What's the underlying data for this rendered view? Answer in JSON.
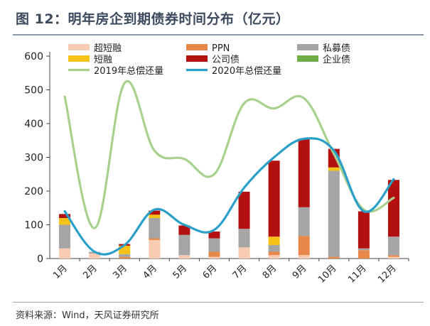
{
  "figure": {
    "title": "图 12：明年房企到期债券时间分布（亿元）",
    "source": "资料来源：Wind，天风证券研究所"
  },
  "chart_data": {
    "type": "bar",
    "stacked": true,
    "categories": [
      "1月",
      "2月",
      "3月",
      "4月",
      "5月",
      "6月",
      "7月",
      "8月",
      "9月",
      "10月",
      "11月",
      "12月"
    ],
    "ylim": [
      0,
      600
    ],
    "yticks": [
      0,
      100,
      200,
      300,
      400,
      500,
      600
    ],
    "legend_position": "top",
    "series": [
      {
        "name": "超短融",
        "color": "#f9cbb0",
        "values": [
          30,
          15,
          0,
          55,
          10,
          5,
          33,
          10,
          10,
          0,
          0,
          5
        ]
      },
      {
        "name": "PPN",
        "color": "#e8874a",
        "values": [
          0,
          0,
          5,
          5,
          0,
          15,
          0,
          10,
          57,
          5,
          25,
          5
        ]
      },
      {
        "name": "私募债",
        "color": "#a5a5a5",
        "values": [
          70,
          5,
          8,
          60,
          60,
          40,
          55,
          20,
          85,
          255,
          5,
          55
        ]
      },
      {
        "name": "短融",
        "color": "#f5c218",
        "values": [
          20,
          0,
          25,
          10,
          0,
          0,
          0,
          25,
          0,
          10,
          0,
          0
        ]
      },
      {
        "name": "公司债",
        "color": "#b31010",
        "values": [
          12,
          0,
          5,
          12,
          28,
          20,
          110,
          225,
          203,
          55,
          110,
          168
        ]
      },
      {
        "name": "企业债",
        "color": "#70ad47",
        "values": [
          0,
          0,
          0,
          0,
          0,
          0,
          0,
          0,
          0,
          0,
          0,
          0
        ]
      }
    ],
    "lines": [
      {
        "name": "2019年总偿还量",
        "color": "#a9d18e",
        "values": [
          480,
          90,
          520,
          320,
          295,
          250,
          460,
          445,
          475,
          310,
          145,
          180
        ]
      },
      {
        "name": "2020年总偿还量",
        "color": "#2aa0c8",
        "values": [
          140,
          20,
          40,
          145,
          100,
          85,
          210,
          300,
          355,
          320,
          140,
          235
        ]
      }
    ]
  }
}
